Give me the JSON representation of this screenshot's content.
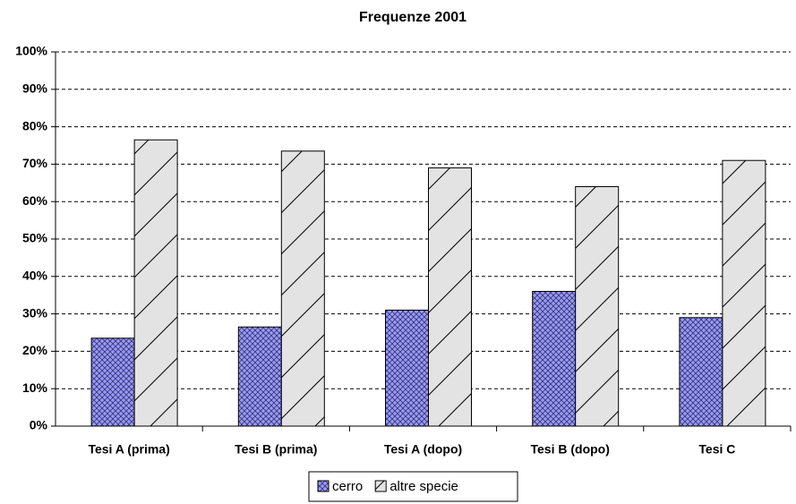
{
  "chart_data": {
    "type": "bar",
    "title": "Frequenze 2001",
    "categories": [
      "Tesi A (prima)",
      "Tesi B (prima)",
      "Tesi A (dopo)",
      "Tesi B (dopo)",
      "Tesi C"
    ],
    "series": [
      {
        "name": "cerro",
        "color": "#9999ff",
        "values": [
          23.5,
          26.5,
          31,
          36,
          29
        ]
      },
      {
        "name": "altre specie",
        "color": "#e3e3e3",
        "values": [
          76.5,
          73.5,
          69,
          64,
          71
        ]
      }
    ],
    "ylim": [
      0,
      100
    ],
    "yticks": [
      {
        "value": 0,
        "label": "0%"
      },
      {
        "value": 10,
        "label": "10%"
      },
      {
        "value": 20,
        "label": "20%"
      },
      {
        "value": 30,
        "label": "30%"
      },
      {
        "value": 40,
        "label": "40%"
      },
      {
        "value": 50,
        "label": "50%"
      },
      {
        "value": 60,
        "label": "60%"
      },
      {
        "value": 70,
        "label": "70%"
      },
      {
        "value": 80,
        "label": "80%"
      },
      {
        "value": 90,
        "label": "90%"
      },
      {
        "value": 100,
        "label": "100%"
      }
    ],
    "grid": true,
    "legend": "bottom"
  }
}
